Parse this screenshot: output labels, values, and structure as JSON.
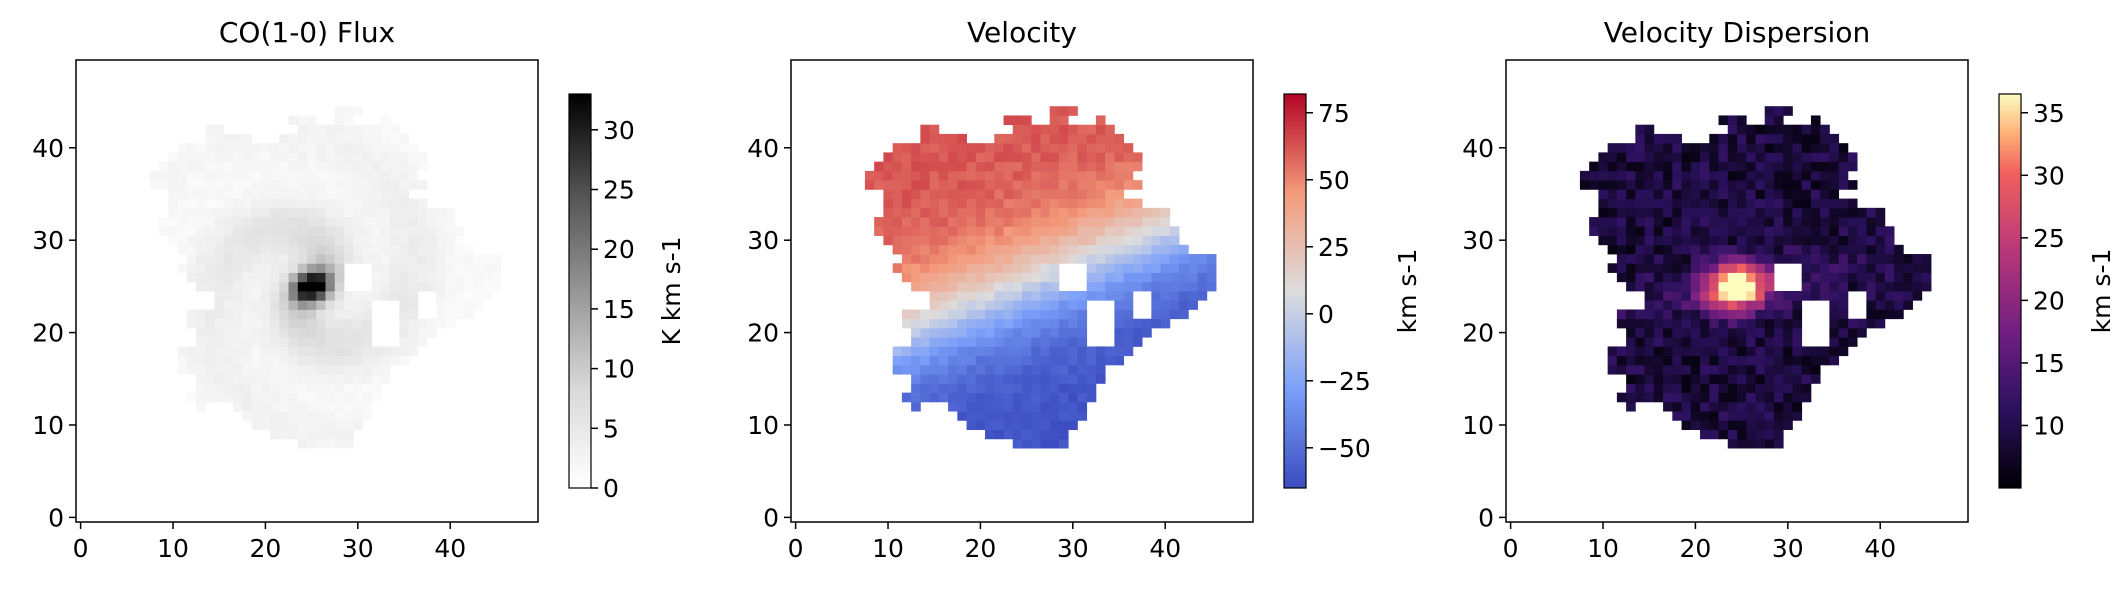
{
  "chart_data": [
    {
      "type": "heatmap",
      "title": "CO(1-0) Flux",
      "xlabel": "",
      "ylabel": "",
      "xlim": [
        -0.5,
        49.5
      ],
      "ylim": [
        -0.5,
        49.5
      ],
      "xticks": [
        0,
        10,
        20,
        30,
        40
      ],
      "yticks": [
        0,
        10,
        20,
        30,
        40
      ],
      "colormap": "Greys",
      "colorbar": {
        "label": "K km s-1",
        "range": [
          0,
          33
        ],
        "ticks": [
          0,
          5,
          10,
          15,
          20,
          25,
          30
        ]
      },
      "field": {
        "description_of_values": "face-on spiral galaxy flux map, grid 50x50",
        "center": [
          25,
          25
        ],
        "peak_value": 33,
        "disk_radius": 16,
        "spiral_arms": 2,
        "masked_outside_emission": true
      },
      "grid": false
    },
    {
      "type": "heatmap",
      "title": "Velocity",
      "xlabel": "",
      "ylabel": "",
      "xlim": [
        -0.5,
        49.5
      ],
      "ylim": [
        -0.5,
        49.5
      ],
      "xticks": [
        0,
        10,
        20,
        30,
        40
      ],
      "yticks": [
        0,
        10,
        20,
        30,
        40
      ],
      "colormap": "coolwarm",
      "colorbar": {
        "label": "km s-1",
        "range": [
          -65,
          82
        ],
        "ticks": [
          -50,
          -25,
          0,
          25,
          50,
          75
        ]
      },
      "field": {
        "description_of_values": "rotating disk velocity field, grid 50x50",
        "center": [
          25,
          25
        ],
        "max_velocity": 80,
        "min_velocity": -62,
        "masked_outside_emission": true
      },
      "grid": false
    },
    {
      "type": "heatmap",
      "title": "Velocity Dispersion",
      "xlabel": "",
      "ylabel": "",
      "xlim": [
        -0.5,
        49.5
      ],
      "ylim": [
        -0.5,
        49.5
      ],
      "xticks": [
        0,
        10,
        20,
        30,
        40
      ],
      "yticks": [
        0,
        10,
        20,
        30,
        40
      ],
      "colormap": "magma",
      "colorbar": {
        "label": "km s-1",
        "range": [
          5,
          36.5
        ],
        "ticks": [
          10,
          15,
          20,
          25,
          30,
          35
        ]
      },
      "field": {
        "description_of_values": "velocity dispersion map, grid 50x50",
        "center": [
          25,
          25
        ],
        "peak_value": 36,
        "background_value": 8,
        "masked_outside_emission": true
      },
      "grid": false
    }
  ]
}
